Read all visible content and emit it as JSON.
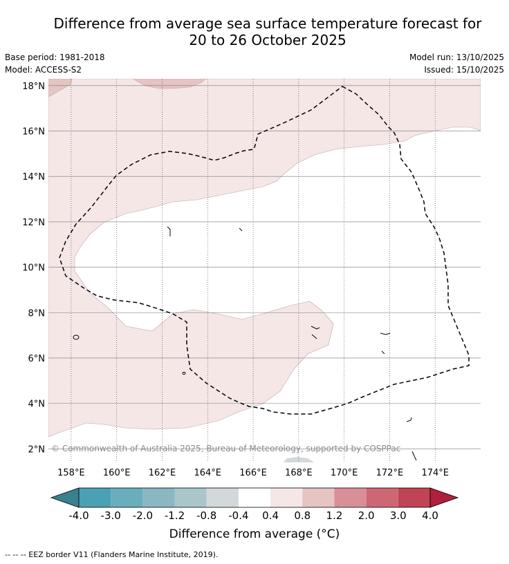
{
  "title_line1": "Difference from average sea surface temperature forecast for",
  "title_line2": "20 to 26 October 2025",
  "meta": {
    "base_period": "Base period: 1981-2018",
    "model": "Model: ACCESS-S2",
    "model_run": "Model run: 13/10/2025",
    "issued": "Issued: 15/10/2025"
  },
  "map": {
    "lat_labels": [
      "18°N",
      "16°N",
      "14°N",
      "12°N",
      "10°N",
      "8°N",
      "6°N",
      "4°N",
      "2°N"
    ],
    "lat_values": [
      18,
      16,
      14,
      12,
      10,
      8,
      6,
      4,
      2
    ],
    "lon_labels": [
      "158°E",
      "160°E",
      "162°E",
      "164°E",
      "166°E",
      "168°E",
      "170°E",
      "172°E",
      "174°E"
    ],
    "lon_values": [
      158,
      160,
      162,
      164,
      166,
      168,
      170,
      172,
      174
    ],
    "lon_range": [
      157,
      176
    ],
    "lat_range": [
      1.4,
      18.3
    ],
    "copyright": "© Commonwealth of Australia 2025, Bureau of Meteorology, supported by COSPPac",
    "colors": {
      "warm_light": "#f4e7e6",
      "warm_mid": "#e6c4c1",
      "cool_light": "#d3d8da",
      "border": "#000000"
    }
  },
  "colorbar": {
    "tick_labels": [
      "-4.0",
      "-3.0",
      "-2.0",
      "-1.2",
      "-0.8",
      "-0.4",
      "0.4",
      "0.8",
      "1.2",
      "2.0",
      "3.0",
      "4.0"
    ],
    "colors": [
      "#3a8190",
      "#4aa1b5",
      "#6aaebd",
      "#8bb7c3",
      "#a9c6cb",
      "#d3d8da",
      "#ffffff",
      "#f4e7e6",
      "#e6c4c1",
      "#d98f98",
      "#cd6774",
      "#c04455",
      "#b0203e"
    ],
    "label": "Difference from average (°C)"
  },
  "footnote": "--  --  -- EEZ border V11 (Flanders Marine Institute, 2019)."
}
